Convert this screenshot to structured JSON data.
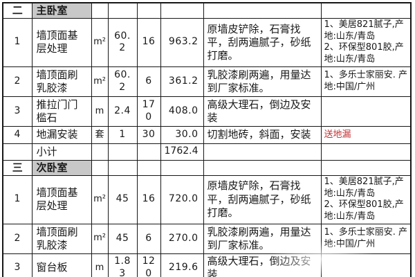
{
  "colors": {
    "section_bg": "#c8c8c8",
    "red": "#c03033",
    "border": "#161616",
    "text": "#181818"
  },
  "rows": [
    {
      "type": "section",
      "seq": "二",
      "name": "主卧室",
      "unit": "",
      "qty": "",
      "price": "",
      "total": "",
      "desc": "",
      "materials": ""
    },
    {
      "type": "item",
      "seq": "1",
      "name": "墙顶面基层处理",
      "unit": "m²",
      "qty": "60.2",
      "price": "16",
      "total": "963.2",
      "desc": "原墙皮铲除，石膏找平，刮两遍腻子，砂纸打磨。",
      "materials": "1、美居821腻子,产地:山东/青岛\n2、环保型801胶,产地:山东/青岛"
    },
    {
      "type": "item",
      "seq": "2",
      "name": "墙顶面刷乳胶漆",
      "unit": "m²",
      "qty": "60.2",
      "price": "6",
      "total": "361.2",
      "desc": "乳胶漆刷两遍，用量达到厂家标准。",
      "materials": "1、多乐士家丽安. 产地:中国/广州"
    },
    {
      "type": "item",
      "seq": "3",
      "name": "推拉门门槛石",
      "unit": "m",
      "qty": "2.4",
      "price": "170",
      "total": "408.0",
      "desc": "高级大理石，倒边及安装",
      "materials": ""
    },
    {
      "type": "item",
      "seq": "4",
      "name": "地漏安装",
      "unit": "套",
      "qty": "1",
      "price": "30",
      "total": "30.0",
      "desc": "切割地砖，斜面，安装",
      "materials": "送地漏",
      "materials_red": true
    },
    {
      "type": "subtotal",
      "seq": "",
      "name": "小计",
      "unit": "",
      "qty": "",
      "price": "",
      "total": "1762.4",
      "desc": "",
      "materials": ""
    },
    {
      "type": "section",
      "seq": "三",
      "name": "次卧室",
      "unit": "",
      "qty": "",
      "price": "",
      "total": "",
      "desc": "",
      "materials": ""
    },
    {
      "type": "item",
      "seq": "1",
      "name": "墙顶面基层处理",
      "unit": "m²",
      "qty": "45",
      "price": "16",
      "total": "720.0",
      "desc": "原墙皮铲除，石膏找平，刮两遍腻子，砂纸打磨。",
      "materials": "1、美居821腻子,产地:山东/青岛\n2、环保型801胶,产地:山东/青岛"
    },
    {
      "type": "item",
      "seq": "2",
      "name": "墙顶面刷乳胶漆",
      "unit": "m²",
      "qty": "45",
      "price": "6",
      "total": "270.0",
      "desc": "乳胶漆刷两遍，用量达到厂家标准。",
      "materials": "1、多乐士家丽安. 产地:中国/广州"
    },
    {
      "type": "item",
      "seq": "3",
      "name": "窗台板",
      "unit": "m",
      "qty": "1.83",
      "price": "120",
      "total": "219.6",
      "desc": "高级大理石，倒边及安装",
      "materials": ""
    }
  ]
}
